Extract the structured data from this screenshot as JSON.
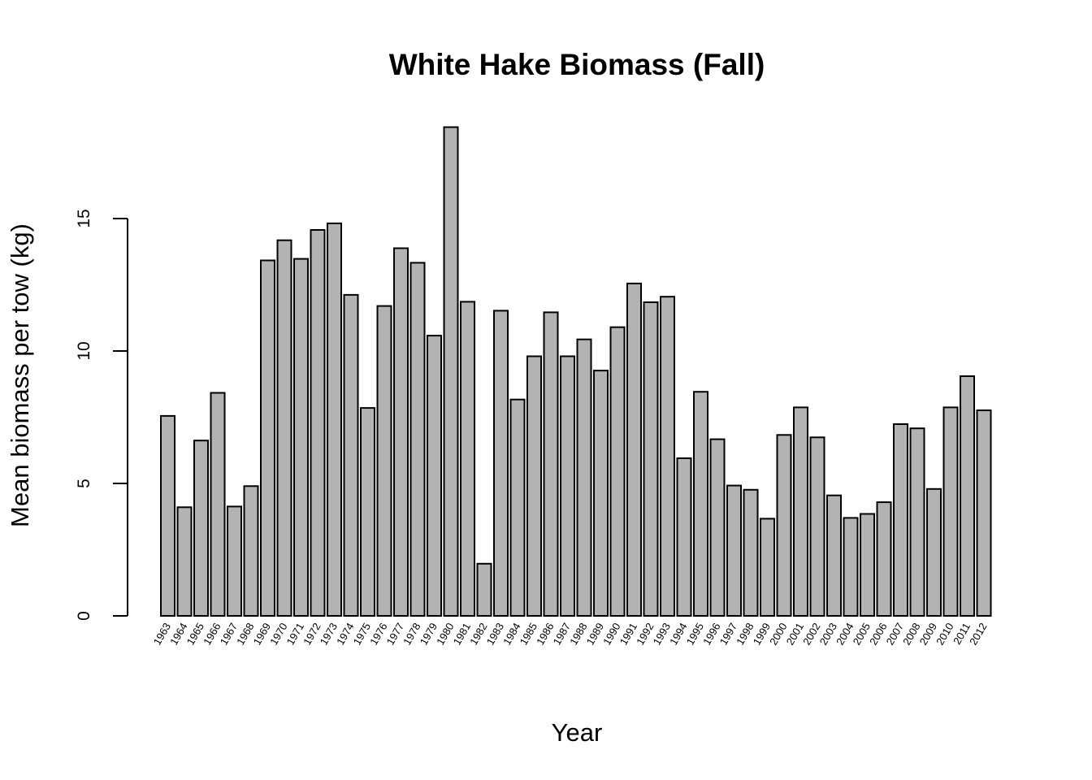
{
  "chart_data": {
    "type": "bar",
    "title": "White Hake Biomass (Fall)",
    "xlabel": "Year",
    "ylabel": "Mean biomass per tow (kg)",
    "ylim": [
      0,
      18.5
    ],
    "yticks": [
      0,
      5,
      10,
      15
    ],
    "grid": false,
    "categories": [
      "1963",
      "1964",
      "1965",
      "1966",
      "1967",
      "1968",
      "1969",
      "1970",
      "1971",
      "1972",
      "1973",
      "1974",
      "1975",
      "1976",
      "1977",
      "1978",
      "1979",
      "1980",
      "1981",
      "1982",
      "1983",
      "1984",
      "1985",
      "1986",
      "1987",
      "1988",
      "1989",
      "1990",
      "1991",
      "1992",
      "1993",
      "1994",
      "1995",
      "1996",
      "1997",
      "1998",
      "1999",
      "2000",
      "2001",
      "2002",
      "2003",
      "2004",
      "2005",
      "2006",
      "2007",
      "2008",
      "2009",
      "2010",
      "2011",
      "2012"
    ],
    "values": [
      7.55,
      4.1,
      6.62,
      8.42,
      4.13,
      4.9,
      13.42,
      14.18,
      13.48,
      14.57,
      14.82,
      12.12,
      7.85,
      11.7,
      13.88,
      13.33,
      10.58,
      18.45,
      11.86,
      1.97,
      11.52,
      8.17,
      9.8,
      11.46,
      9.8,
      10.44,
      9.26,
      10.9,
      12.55,
      11.84,
      12.05,
      5.95,
      8.46,
      6.67,
      4.92,
      4.76,
      3.67,
      6.83,
      7.87,
      6.74,
      4.55,
      3.7,
      3.85,
      4.29,
      7.24,
      7.08,
      4.79,
      7.87,
      9.05,
      7.76
    ],
    "bar_color": "#b3b3b3",
    "edge_color": "#000000"
  }
}
